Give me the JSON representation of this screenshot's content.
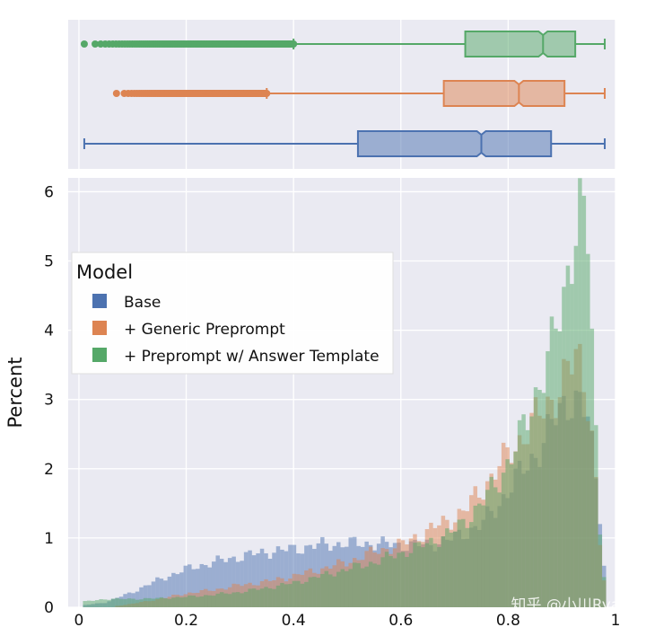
{
  "chart_data": {
    "type": "histogram_with_boxplots",
    "ylabel": "Percent",
    "xlim": [
      -0.02,
      1.0
    ],
    "ylim": [
      0,
      6.2
    ],
    "x_ticks": [
      0,
      0.2,
      0.4,
      0.6,
      0.8,
      1
    ],
    "x_tick_labels": [
      "0",
      "0.2",
      "0.4",
      "0.6",
      "0.8",
      "1"
    ],
    "y_ticks": [
      0,
      1,
      2,
      3,
      4,
      5,
      6
    ],
    "y_tick_labels": [
      "0",
      "1",
      "2",
      "3",
      "4",
      "5",
      "6"
    ],
    "grid": true,
    "legend": {
      "title": "Model",
      "position": "upper-left",
      "entries": [
        "Base",
        "+ Generic Preprompt",
        "+ Preprompt w/ Answer Template"
      ]
    },
    "series": [
      {
        "name": "Base",
        "color": "#4c72b0",
        "boxplot": {
          "whisker_low": 0.01,
          "q1": 0.52,
          "median": 0.75,
          "q3": 0.88,
          "whisker_high": 0.98,
          "outliers_from": null,
          "outliers_to": null
        },
        "histogram_points": [
          [
            0.01,
            0.03
          ],
          [
            0.05,
            0.07
          ],
          [
            0.1,
            0.22
          ],
          [
            0.15,
            0.4
          ],
          [
            0.2,
            0.55
          ],
          [
            0.25,
            0.65
          ],
          [
            0.3,
            0.73
          ],
          [
            0.35,
            0.8
          ],
          [
            0.4,
            0.84
          ],
          [
            0.45,
            0.9
          ],
          [
            0.5,
            0.92
          ],
          [
            0.55,
            0.92
          ],
          [
            0.6,
            0.9
          ],
          [
            0.65,
            0.9
          ],
          [
            0.7,
            1.0
          ],
          [
            0.75,
            1.2
          ],
          [
            0.78,
            1.45
          ],
          [
            0.8,
            1.7
          ],
          [
            0.83,
            2.0
          ],
          [
            0.86,
            2.3
          ],
          [
            0.88,
            2.6
          ],
          [
            0.9,
            2.9
          ],
          [
            0.92,
            3.05
          ],
          [
            0.93,
            2.95
          ],
          [
            0.95,
            2.7
          ],
          [
            0.96,
            2.1
          ],
          [
            0.97,
            1.5
          ],
          [
            0.98,
            0.5
          ]
        ]
      },
      {
        "name": "+ Generic Preprompt",
        "color": "#dd8452",
        "boxplot": {
          "whisker_low": 0.35,
          "q1": 0.68,
          "median": 0.82,
          "q3": 0.905,
          "whisker_high": 0.98,
          "outliers_from": 0.07,
          "outliers_to": 0.35
        },
        "histogram_points": [
          [
            0.07,
            0.02
          ],
          [
            0.1,
            0.05
          ],
          [
            0.15,
            0.12
          ],
          [
            0.2,
            0.2
          ],
          [
            0.25,
            0.25
          ],
          [
            0.3,
            0.32
          ],
          [
            0.35,
            0.37
          ],
          [
            0.4,
            0.45
          ],
          [
            0.45,
            0.55
          ],
          [
            0.5,
            0.65
          ],
          [
            0.55,
            0.8
          ],
          [
            0.6,
            0.9
          ],
          [
            0.65,
            1.1
          ],
          [
            0.7,
            1.3
          ],
          [
            0.72,
            1.4
          ],
          [
            0.75,
            1.7
          ],
          [
            0.78,
            2.0
          ],
          [
            0.8,
            2.2
          ],
          [
            0.82,
            2.4
          ],
          [
            0.84,
            2.6
          ],
          [
            0.86,
            2.8
          ],
          [
            0.88,
            3.0
          ],
          [
            0.9,
            3.2
          ],
          [
            0.92,
            3.5
          ],
          [
            0.93,
            3.7
          ],
          [
            0.94,
            3.4
          ],
          [
            0.95,
            3.0
          ],
          [
            0.96,
            2.2
          ],
          [
            0.97,
            1.0
          ],
          [
            0.98,
            0.3
          ]
        ]
      },
      {
        "name": "+ Preprompt w/ Answer Template",
        "color": "#55a868",
        "boxplot": {
          "whisker_low": 0.4,
          "q1": 0.72,
          "median": 0.865,
          "q3": 0.925,
          "whisker_high": 0.98,
          "outliers_from": 0.01,
          "outliers_to": 0.4
        },
        "histogram_points": [
          [
            0.01,
            0.08
          ],
          [
            0.05,
            0.12
          ],
          [
            0.1,
            0.12
          ],
          [
            0.15,
            0.13
          ],
          [
            0.2,
            0.15
          ],
          [
            0.25,
            0.18
          ],
          [
            0.3,
            0.22
          ],
          [
            0.35,
            0.28
          ],
          [
            0.4,
            0.35
          ],
          [
            0.45,
            0.45
          ],
          [
            0.5,
            0.55
          ],
          [
            0.55,
            0.65
          ],
          [
            0.6,
            0.78
          ],
          [
            0.65,
            0.92
          ],
          [
            0.7,
            1.1
          ],
          [
            0.72,
            1.25
          ],
          [
            0.75,
            1.5
          ],
          [
            0.78,
            1.8
          ],
          [
            0.8,
            2.1
          ],
          [
            0.82,
            2.4
          ],
          [
            0.84,
            2.8
          ],
          [
            0.86,
            3.3
          ],
          [
            0.88,
            3.7
          ],
          [
            0.9,
            4.3
          ],
          [
            0.91,
            4.8
          ],
          [
            0.92,
            5.3
          ],
          [
            0.93,
            5.8
          ],
          [
            0.94,
            5.6
          ],
          [
            0.95,
            5.2
          ],
          [
            0.96,
            3.2
          ],
          [
            0.97,
            1.2
          ],
          [
            0.98,
            0.4
          ]
        ]
      }
    ]
  },
  "watermark": "知乎 @小川Ryan"
}
